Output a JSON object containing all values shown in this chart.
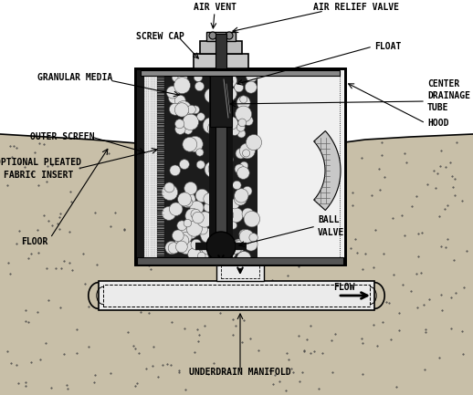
{
  "bg_color": "#ffffff",
  "line_color": "#000000",
  "ground_color": "#c8bfa8",
  "pipe_color": "#e0e0e0",
  "labels": {
    "air_vent": "AIR VENT",
    "air_relief_valve": "AIR RELIEF VALVE",
    "screw_cap": "SCREW CAP",
    "float": "FLOAT",
    "granular_media": "GRANULAR MEDIA",
    "hood": "HOOD",
    "outer_screen": "OUTER SCREEN",
    "center_drainage_tube": "CENTER\nDRAINAGE\nTUBE",
    "optional_pleated": "OPTIONAL PLEATED\nFABRIC INSERT",
    "ball_valve": "BALL\nVALVE",
    "floor": "FLOOR",
    "flow": "FLOW",
    "underdrain_manifold": "UNDERDRAIN MANIFOLD"
  },
  "font_size": 7.0
}
